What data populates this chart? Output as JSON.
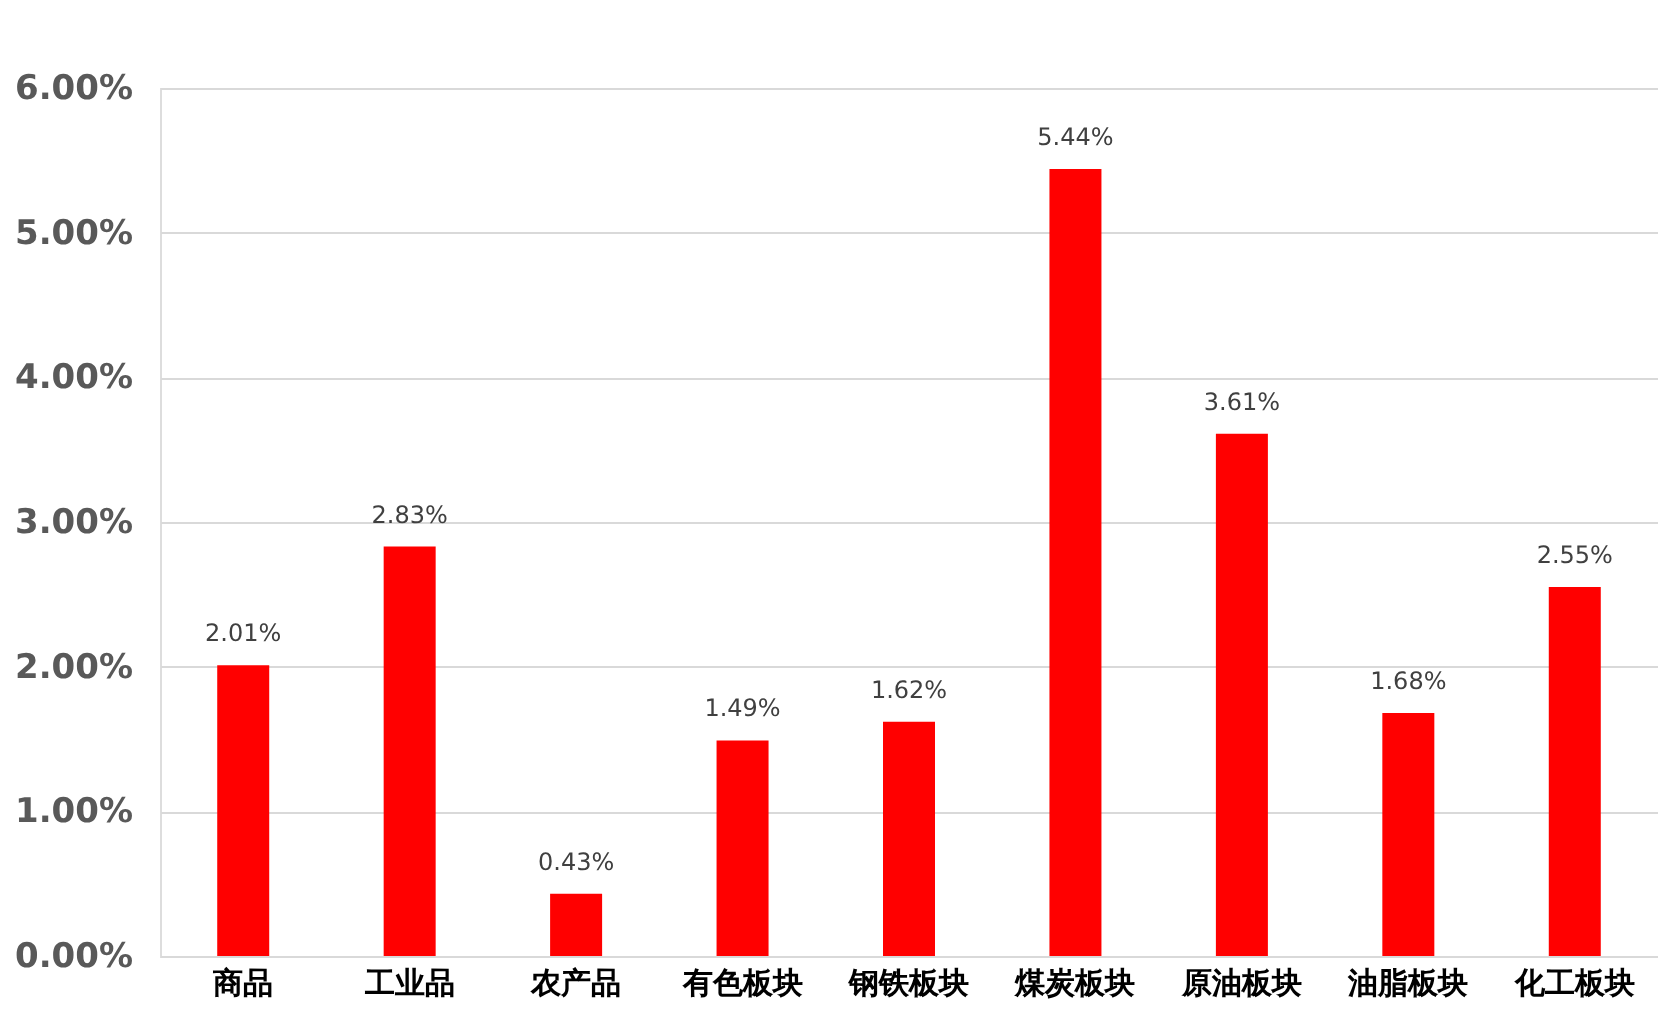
{
  "chart_data": {
    "type": "bar",
    "categories": [
      "商品",
      "工业品",
      "农产品",
      "有色板块",
      "钢铁板块",
      "煤炭板块",
      "原油板块",
      "油脂板块",
      "化工板块"
    ],
    "values": [
      2.01,
      2.83,
      0.43,
      1.49,
      1.62,
      5.44,
      3.61,
      1.68,
      2.55
    ],
    "value_labels": [
      "2.01%",
      "2.83%",
      "0.43%",
      "1.49%",
      "1.62%",
      "5.44%",
      "3.61%",
      "1.68%",
      "2.55%"
    ],
    "color": "#ff0000",
    "ylim": [
      0,
      6
    ],
    "yticks": [
      {
        "value": 0,
        "label": "0.00%"
      },
      {
        "value": 1,
        "label": "1.00%"
      },
      {
        "value": 2,
        "label": "2.00%"
      },
      {
        "value": 3,
        "label": "3.00%"
      },
      {
        "value": 4,
        "label": "4.00%"
      },
      {
        "value": 5,
        "label": "5.00%"
      },
      {
        "value": 6,
        "label": "6.00%"
      }
    ],
    "grid": "y"
  }
}
